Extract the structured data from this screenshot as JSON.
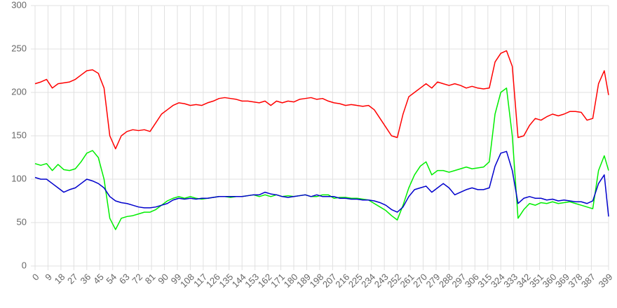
{
  "chart_data": {
    "type": "line",
    "x": [
      0,
      4,
      8,
      12,
      16,
      20,
      24,
      28,
      32,
      36,
      40,
      44,
      48,
      52,
      56,
      60,
      64,
      68,
      72,
      76,
      80,
      84,
      88,
      92,
      96,
      100,
      104,
      108,
      112,
      116,
      120,
      124,
      128,
      132,
      136,
      140,
      144,
      148,
      152,
      156,
      160,
      164,
      168,
      172,
      176,
      180,
      184,
      188,
      192,
      196,
      200,
      204,
      208,
      212,
      216,
      220,
      224,
      228,
      232,
      236,
      240,
      244,
      248,
      252,
      256,
      260,
      264,
      268,
      272,
      276,
      280,
      284,
      288,
      292,
      296,
      300,
      304,
      308,
      312,
      316,
      320,
      324,
      328,
      332,
      336,
      340,
      344,
      348,
      352,
      356,
      360,
      364,
      368,
      372,
      376,
      380,
      384,
      388,
      392,
      396,
      399
    ],
    "series": [
      {
        "color": "#ff0000",
        "values": [
          210,
          212,
          215,
          205,
          210,
          211,
          212,
          215,
          220,
          225,
          226,
          222,
          205,
          150,
          135,
          150,
          155,
          157,
          156,
          157,
          155,
          165,
          175,
          180,
          185,
          188,
          187,
          185,
          186,
          185,
          188,
          190,
          193,
          194,
          193,
          192,
          190,
          190,
          189,
          188,
          190,
          185,
          190,
          188,
          190,
          189,
          192,
          193,
          194,
          192,
          193,
          190,
          188,
          187,
          185,
          186,
          185,
          184,
          185,
          180,
          170,
          160,
          150,
          148,
          175,
          195,
          200,
          205,
          210,
          205,
          212,
          210,
          208,
          210,
          208,
          205,
          207,
          205,
          204,
          205,
          235,
          245,
          248,
          230,
          148,
          150,
          162,
          170,
          168,
          172,
          175,
          173,
          175,
          178,
          178,
          177,
          168,
          170,
          210,
          225,
          197
        ]
      },
      {
        "color": "#00ee00",
        "values": [
          118,
          116,
          118,
          110,
          117,
          111,
          110,
          112,
          120,
          130,
          133,
          125,
          100,
          55,
          42,
          55,
          57,
          58,
          60,
          62,
          62,
          65,
          70,
          75,
          78,
          80,
          78,
          80,
          78,
          77,
          78,
          79,
          80,
          80,
          79,
          80,
          80,
          81,
          82,
          80,
          82,
          80,
          82,
          80,
          81,
          80,
          81,
          82,
          80,
          80,
          82,
          82,
          78,
          79,
          79,
          78,
          78,
          77,
          76,
          72,
          68,
          64,
          58,
          53,
          70,
          90,
          105,
          115,
          120,
          105,
          110,
          110,
          108,
          110,
          112,
          114,
          112,
          113,
          114,
          120,
          175,
          200,
          205,
          150,
          55,
          65,
          72,
          70,
          73,
          72,
          74,
          72,
          73,
          74,
          72,
          70,
          68,
          66,
          110,
          127,
          110
        ]
      },
      {
        "color": "#0000cc",
        "values": [
          102,
          100,
          100,
          95,
          90,
          85,
          88,
          90,
          95,
          100,
          98,
          95,
          90,
          80,
          75,
          73,
          72,
          70,
          68,
          67,
          67,
          68,
          70,
          72,
          76,
          78,
          77,
          78,
          77,
          78,
          78,
          79,
          80,
          80,
          80,
          80,
          80,
          81,
          82,
          82,
          85,
          83,
          82,
          80,
          79,
          80,
          81,
          82,
          80,
          82,
          80,
          80,
          80,
          78,
          78,
          77,
          77,
          76,
          76,
          75,
          73,
          70,
          65,
          62,
          68,
          80,
          88,
          90,
          92,
          85,
          90,
          95,
          90,
          82,
          85,
          88,
          90,
          88,
          88,
          90,
          115,
          130,
          132,
          110,
          72,
          78,
          80,
          78,
          78,
          76,
          77,
          75,
          76,
          75,
          74,
          74,
          72,
          75,
          95,
          105,
          57
        ]
      }
    ],
    "xlim": [
      0,
      399
    ],
    "xticks": [
      0,
      9,
      18,
      27,
      36,
      45,
      54,
      63,
      72,
      81,
      90,
      99,
      108,
      117,
      126,
      135,
      144,
      153,
      162,
      171,
      180,
      189,
      198,
      207,
      216,
      225,
      234,
      243,
      252,
      261,
      270,
      279,
      288,
      297,
      306,
      315,
      324,
      333,
      342,
      351,
      360,
      369,
      378,
      387,
      399
    ],
    "ylim": [
      0,
      300
    ],
    "yticks": [
      0,
      50,
      100,
      150,
      200,
      250,
      300
    ],
    "grid": true
  }
}
